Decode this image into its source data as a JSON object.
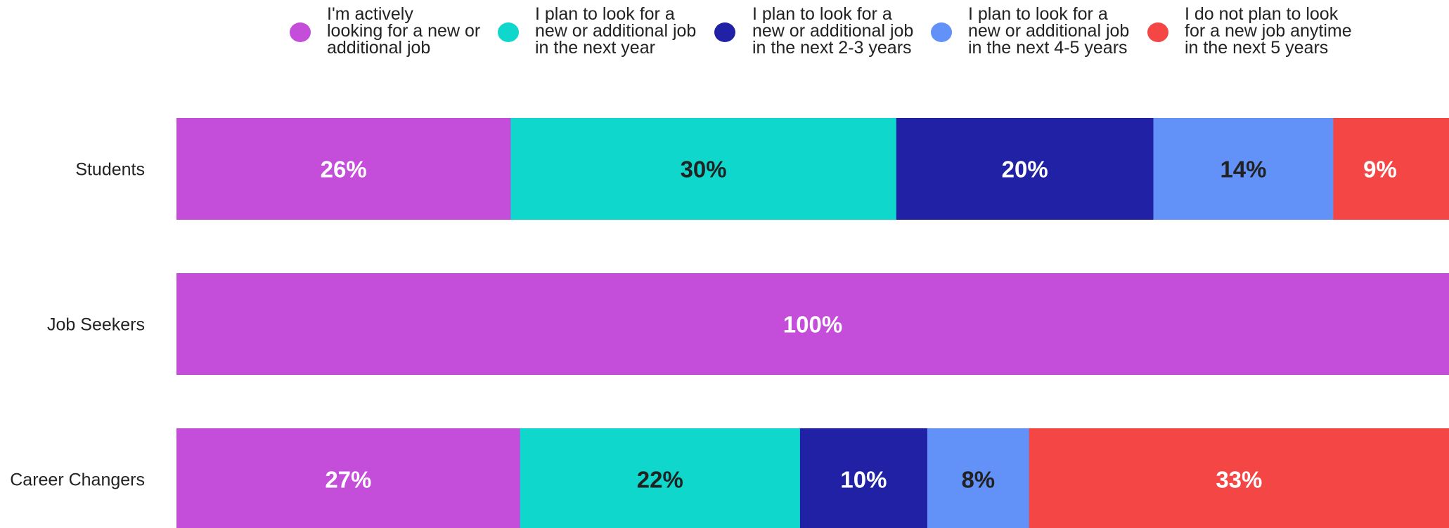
{
  "chart_data": {
    "type": "bar",
    "orientation": "horizontal",
    "stacked": true,
    "normalized": true,
    "categories": [
      "Students",
      "Job Seekers",
      "Career Changers"
    ],
    "series": [
      {
        "name": "I'm actively looking for a new or additional job",
        "name_lines": [
          "I'm actively",
          "looking for a new or",
          "additional job"
        ],
        "color": "#c44dd9",
        "text_color": "#ffffff",
        "values": [
          26,
          100,
          27
        ],
        "labels": [
          "26%",
          "100%",
          "27%"
        ]
      },
      {
        "name": "I plan to look for a new or additional job in the next year",
        "name_lines": [
          "I plan to look for a",
          "new or additional job",
          "in the next year"
        ],
        "color": "#0fd7cc",
        "text_color": "#222222",
        "values": [
          30,
          0,
          22
        ],
        "labels": [
          "30%",
          "",
          "22%"
        ]
      },
      {
        "name": "I plan to look for a new or additional job in the next 2-3 years",
        "name_lines": [
          "I plan to look for a",
          "new or additional job",
          "in the next 2-3 years"
        ],
        "color": "#2121a6",
        "text_color": "#ffffff",
        "values": [
          20,
          0,
          10
        ],
        "labels": [
          "20%",
          "",
          "10%"
        ]
      },
      {
        "name": "I plan to look for a new or additional job in the next 4-5 years",
        "name_lines": [
          "I plan to look for a",
          "new or additional job",
          "in the next 4-5 years"
        ],
        "color": "#6291f7",
        "text_color": "#222222",
        "values": [
          14,
          0,
          8
        ],
        "labels": [
          "14%",
          "",
          "8%"
        ]
      },
      {
        "name": "I do not plan to look for a new job anytime in the next 5 years",
        "name_lines": [
          "I do not plan to look",
          "for a new job anytime",
          "in the next 5 years"
        ],
        "color": "#f54646",
        "text_color": "#ffffff",
        "values": [
          9,
          0,
          33
        ],
        "labels": [
          "9%",
          "",
          "33%"
        ]
      }
    ],
    "legend_position": "top",
    "grid": false
  }
}
